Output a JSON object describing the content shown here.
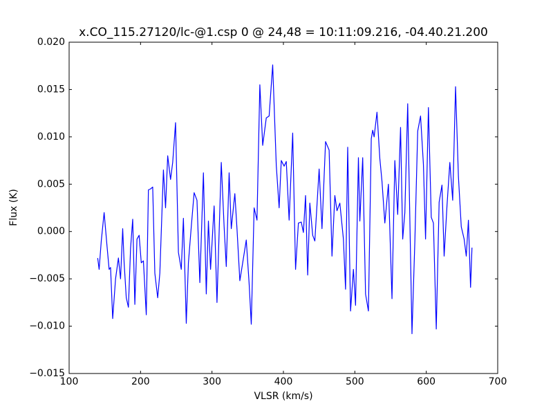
{
  "chart_data": {
    "type": "line",
    "title": "x.CO_115.27120/lc-@1.csp 0 @ 24,48 = 10:11:09.216, -04.40.21.200",
    "x_label": "VLSR (km/s)",
    "y_label": "Flux (K)",
    "xlim": [
      100,
      700
    ],
    "xticks": [
      100,
      200,
      300,
      400,
      500,
      600,
      700
    ],
    "ylim": [
      -0.015,
      0.02
    ],
    "yticks": [
      {
        "value": -0.015,
        "label": "−0.015"
      },
      {
        "value": -0.01,
        "label": "−0.010"
      },
      {
        "value": -0.005,
        "label": "−0.005"
      },
      {
        "value": 0,
        "label": "0.000"
      },
      {
        "value": 0.005,
        "label": "0.005"
      },
      {
        "value": 0.01,
        "label": "0.010"
      },
      {
        "value": 0.015,
        "label": "0.015"
      },
      {
        "value": 0.02,
        "label": "0.020"
      }
    ],
    "x": [
      140,
      142,
      145,
      149,
      153,
      156,
      158,
      161,
      165,
      169,
      172,
      175,
      177,
      180,
      183,
      186,
      189,
      192,
      195,
      198,
      201,
      204,
      208,
      211,
      214,
      217,
      220,
      224,
      227,
      232,
      235,
      238,
      242,
      245,
      249,
      253,
      257,
      260,
      264,
      267,
      271,
      275,
      279,
      283,
      288,
      292,
      295,
      298,
      303,
      307,
      313,
      317,
      320,
      324,
      327,
      332,
      335,
      339,
      343,
      348,
      352,
      355,
      359,
      363,
      367,
      371,
      376,
      380,
      385,
      390,
      394,
      397,
      401,
      404,
      408,
      413,
      417,
      421,
      425,
      428,
      431,
      434,
      437,
      441,
      444,
      450,
      454,
      459,
      464,
      468,
      472,
      475,
      479,
      484,
      487,
      490,
      494,
      498,
      501,
      505,
      507,
      511,
      515,
      519,
      523,
      525,
      527,
      531,
      535,
      538,
      542,
      547,
      552,
      556,
      560,
      564,
      567,
      570,
      574,
      580,
      584,
      588,
      592,
      596,
      599,
      603,
      607,
      610,
      614,
      618,
      622,
      625,
      629,
      633,
      637,
      641,
      645,
      649,
      653,
      656,
      659,
      662,
      664
    ],
    "series": [
      {
        "color": "#0000ff",
        "values": [
          -0.0028,
          -0.004,
          -0.001,
          0.002,
          -0.0015,
          -0.004,
          -0.0038,
          -0.0092,
          -0.005,
          -0.0028,
          -0.005,
          0.0003,
          -0.0033,
          -0.007,
          -0.008,
          -0.0018,
          0.0013,
          -0.0077,
          -0.0008,
          -0.0004,
          -0.0033,
          -0.0031,
          -0.0088,
          0.0044,
          0.0045,
          0.0047,
          -0.0044,
          -0.007,
          -0.0044,
          0.0065,
          0.0025,
          0.008,
          0.0055,
          0.0073,
          0.0115,
          -0.0022,
          -0.004,
          0.0014,
          -0.0097,
          -0.0033,
          0.0005,
          0.0041,
          0.0033,
          -0.0054,
          0.0062,
          -0.0066,
          0.0011,
          -0.004,
          0.0027,
          -0.0075,
          0.0073,
          0.0005,
          -0.0037,
          0.0062,
          0.0003,
          0.004,
          0.0003,
          -0.0052,
          -0.0033,
          -0.0009,
          -0.0055,
          -0.0098,
          0.0025,
          0.0012,
          0.0155,
          0.0091,
          0.012,
          0.0122,
          0.0176,
          0.007,
          0.0025,
          0.0075,
          0.0069,
          0.0074,
          0.0012,
          0.0104,
          -0.004,
          0.0009,
          0.001,
          -0.0001,
          0.0038,
          -0.0046,
          0.003,
          -0.0004,
          -0.001,
          0.0066,
          0.0003,
          0.0095,
          0.0086,
          -0.0026,
          0.0038,
          0.0022,
          0.003,
          -0.0008,
          -0.0061,
          0.0089,
          -0.0084,
          -0.004,
          -0.0078,
          0.0078,
          0.0011,
          0.0078,
          -0.0066,
          -0.0084,
          0.0098,
          0.0107,
          0.01,
          0.0126,
          0.0077,
          0.0053,
          0.0009,
          0.005,
          -0.0071,
          0.0075,
          0.0018,
          0.011,
          -0.0008,
          0.002,
          0.0135,
          -0.0108,
          -0.0011,
          0.0106,
          0.0122,
          0.0071,
          -0.0008,
          0.0131,
          0.0015,
          0.0009,
          -0.0103,
          0.0031,
          0.0049,
          -0.0026,
          0.0027,
          0.0073,
          0.0033,
          0.0153,
          0.0058,
          0.0005,
          -0.0008,
          -0.0026,
          0.0012,
          -0.0059,
          -0.0017
        ]
      }
    ]
  }
}
